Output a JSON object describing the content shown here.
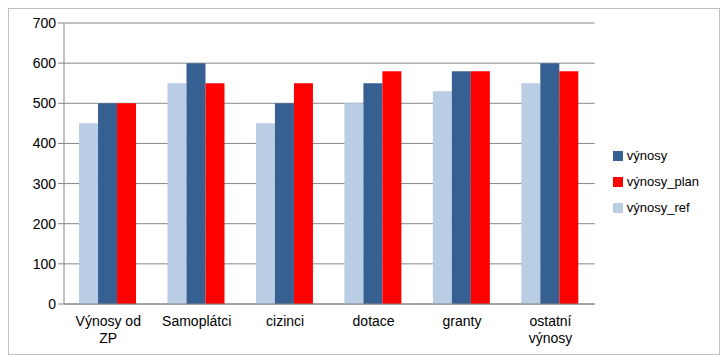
{
  "chart_data": {
    "type": "bar",
    "categories": [
      "Výnosy od ZP",
      "Samoplátci",
      "cizinci",
      "dotace",
      "granty",
      "ostatní výnosy"
    ],
    "series": [
      {
        "name": "výnosy_ref",
        "color": "#b9cde5",
        "values": [
          450,
          550,
          450,
          500,
          530,
          550
        ]
      },
      {
        "name": "výnosy",
        "color": "#376092",
        "values": [
          500,
          600,
          500,
          550,
          580,
          600
        ]
      },
      {
        "name": "výnosy_plan",
        "color": "#ff0000",
        "values": [
          500,
          550,
          550,
          580,
          580,
          580
        ]
      }
    ],
    "ylim": [
      0,
      700
    ],
    "yticks": [
      0,
      100,
      200,
      300,
      400,
      500,
      600,
      700
    ],
    "grid": true,
    "legend": "right"
  }
}
